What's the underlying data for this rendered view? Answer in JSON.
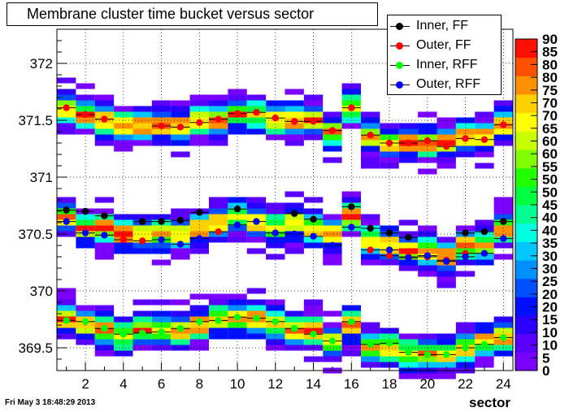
{
  "title": "Membrane cluster time bucket versus sector",
  "timestamp": "Fri May  3 18:48:29 2013",
  "chart_data": {
    "type": "heatmap",
    "title": "Membrane cluster time bucket versus sector",
    "xlabel": "sector",
    "ylabel": "",
    "xlim": [
      0.5,
      24.5
    ],
    "ylim": [
      369.3,
      372.3
    ],
    "x_ticks": [
      2,
      4,
      6,
      8,
      10,
      12,
      14,
      16,
      18,
      20,
      22,
      24
    ],
    "y_ticks": [
      369.5,
      370,
      370.5,
      371,
      371.5,
      372
    ],
    "y_tick_labels": [
      "369.5",
      "370",
      "370.5",
      "371",
      "371.5",
      "372"
    ],
    "grid": true,
    "legend_position": "top-right",
    "colorbar_ticks": [
      "0",
      "5",
      "10",
      "10",
      "15",
      "20",
      "20",
      "25",
      "30",
      "30",
      "35",
      "40",
      "40",
      "45",
      "50",
      "50",
      "55",
      "60",
      "60",
      "65",
      "70",
      "70",
      "75",
      "80",
      "80",
      "85",
      "90"
    ],
    "heatmap_bands": [
      {
        "name": "upper band",
        "center": [
          371.6,
          371.55,
          371.5,
          371.45,
          371.45,
          371.45,
          371.45,
          371.5,
          371.5,
          371.55,
          371.55,
          371.5,
          371.5,
          371.5,
          371.4,
          371.6,
          371.35,
          371.3,
          371.3,
          371.3,
          371.3,
          371.35,
          371.35,
          371.45
        ]
      },
      {
        "name": "middle band",
        "center": [
          370.65,
          370.55,
          370.55,
          370.5,
          370.5,
          370.5,
          370.5,
          370.55,
          370.6,
          370.65,
          370.6,
          370.55,
          370.6,
          370.55,
          370.5,
          370.65,
          370.45,
          370.4,
          370.35,
          370.35,
          370.3,
          370.4,
          370.4,
          370.55
        ]
      },
      {
        "name": "lower band",
        "center": [
          369.75,
          369.7,
          369.65,
          369.6,
          369.65,
          369.65,
          369.65,
          369.7,
          369.75,
          369.75,
          369.75,
          369.7,
          369.65,
          369.65,
          369.55,
          369.7,
          369.5,
          369.5,
          369.45,
          369.45,
          369.45,
          369.5,
          369.55,
          369.6
        ]
      }
    ],
    "series": [
      {
        "name": "Inner, FF",
        "color": "#000000",
        "points": [
          {
            "x": 1,
            "y": 370.71
          },
          {
            "x": 2,
            "y": 370.7
          },
          {
            "x": 3,
            "y": 370.66
          },
          {
            "x": 5,
            "y": 370.61
          },
          {
            "x": 6,
            "y": 370.61
          },
          {
            "x": 7,
            "y": 370.62
          },
          {
            "x": 8,
            "y": 370.69
          },
          {
            "x": 10,
            "y": 370.72
          },
          {
            "x": 13,
            "y": 370.68
          },
          {
            "x": 14,
            "y": 370.63
          },
          {
            "x": 16,
            "y": 370.74
          },
          {
            "x": 17,
            "y": 370.55
          },
          {
            "x": 18,
            "y": 370.51
          },
          {
            "x": 19,
            "y": 370.47
          },
          {
            "x": 22,
            "y": 370.51
          },
          {
            "x": 23,
            "y": 370.52
          },
          {
            "x": 24,
            "y": 370.61
          }
        ]
      },
      {
        "name": "Outer, FF",
        "color": "#ff0000",
        "points": [
          {
            "x": 1,
            "y": 371.61
          },
          {
            "x": 2,
            "y": 371.55
          },
          {
            "x": 3,
            "y": 371.51
          },
          {
            "x": 6,
            "y": 371.45
          },
          {
            "x": 7,
            "y": 371.44
          },
          {
            "x": 8,
            "y": 371.48
          },
          {
            "x": 9,
            "y": 371.51
          },
          {
            "x": 10,
            "y": 371.56
          },
          {
            "x": 11,
            "y": 371.57
          },
          {
            "x": 12,
            "y": 371.52
          },
          {
            "x": 13,
            "y": 371.49
          },
          {
            "x": 14,
            "y": 371.49
          },
          {
            "x": 15,
            "y": 371.41
          },
          {
            "x": 16,
            "y": 371.61
          },
          {
            "x": 17,
            "y": 371.37
          },
          {
            "x": 18,
            "y": 371.3
          },
          {
            "x": 19,
            "y": 371.3
          },
          {
            "x": 20,
            "y": 371.32
          },
          {
            "x": 21,
            "y": 371.27
          },
          {
            "x": 22,
            "y": 371.34
          },
          {
            "x": 23,
            "y": 371.33
          },
          {
            "x": 24,
            "y": 371.46
          },
          {
            "x": 4,
            "y": 370.45
          },
          {
            "x": 5,
            "y": 370.44
          },
          {
            "x": 9,
            "y": 370.52
          },
          {
            "x": 17,
            "y": 370.36
          },
          {
            "x": 18,
            "y": 370.31
          },
          {
            "x": 19,
            "y": 370.3
          },
          {
            "x": 20,
            "y": 370.3
          },
          {
            "x": 21,
            "y": 370.27
          },
          {
            "x": 22,
            "y": 370.33
          }
        ]
      },
      {
        "name": "Inner, RFF",
        "color": "#00ff00",
        "points": [
          {
            "x": 1,
            "y": 369.74
          },
          {
            "x": 2,
            "y": 369.73
          },
          {
            "x": 3,
            "y": 369.67
          },
          {
            "x": 4,
            "y": 369.62
          },
          {
            "x": 5,
            "y": 369.63
          },
          {
            "x": 6,
            "y": 369.64
          },
          {
            "x": 7,
            "y": 369.67
          },
          {
            "x": 8,
            "y": 369.73
          },
          {
            "x": 9,
            "y": 369.74
          },
          {
            "x": 10,
            "y": 369.77
          },
          {
            "x": 11,
            "y": 369.76
          },
          {
            "x": 12,
            "y": 369.73
          },
          {
            "x": 13,
            "y": 369.67
          },
          {
            "x": 14,
            "y": 369.62
          },
          {
            "x": 15,
            "y": 369.56
          },
          {
            "x": 16,
            "y": 369.73
          },
          {
            "x": 17,
            "y": 369.53
          },
          {
            "x": 18,
            "y": 369.54
          },
          {
            "x": 19,
            "y": 369.46
          },
          {
            "x": 20,
            "y": 369.44
          },
          {
            "x": 21,
            "y": 369.44
          },
          {
            "x": 22,
            "y": 369.5
          },
          {
            "x": 23,
            "y": 369.53
          },
          {
            "x": 24,
            "y": 369.59
          }
        ]
      },
      {
        "name": "Outer, RFF",
        "color": "#0000ff",
        "points": [
          {
            "x": 1,
            "y": 370.61
          },
          {
            "x": 2,
            "y": 370.51
          },
          {
            "x": 3,
            "y": 370.49
          },
          {
            "x": 6,
            "y": 370.45
          },
          {
            "x": 7,
            "y": 370.41
          },
          {
            "x": 8,
            "y": 370.46
          },
          {
            "x": 10,
            "y": 370.58
          },
          {
            "x": 11,
            "y": 370.61
          },
          {
            "x": 12,
            "y": 370.51
          },
          {
            "x": 13,
            "y": 370.5
          },
          {
            "x": 14,
            "y": 370.48
          },
          {
            "x": 15,
            "y": 370.4
          },
          {
            "x": 16,
            "y": 370.56
          },
          {
            "x": 18,
            "y": 370.36
          },
          {
            "x": 19,
            "y": 370.29
          },
          {
            "x": 20,
            "y": 370.31
          },
          {
            "x": 21,
            "y": 370.26
          },
          {
            "x": 22,
            "y": 370.3
          },
          {
            "x": 23,
            "y": 370.33
          },
          {
            "x": 24,
            "y": 370.46
          }
        ]
      }
    ]
  },
  "legend": {
    "items": [
      {
        "label": "Inner, FF",
        "color": "#000000"
      },
      {
        "label": "Outer, FF",
        "color": "#ff0000"
      },
      {
        "label": "Inner, RFF",
        "color": "#00ff00"
      },
      {
        "label": "Outer, RFF",
        "color": "#0000ff"
      }
    ]
  }
}
